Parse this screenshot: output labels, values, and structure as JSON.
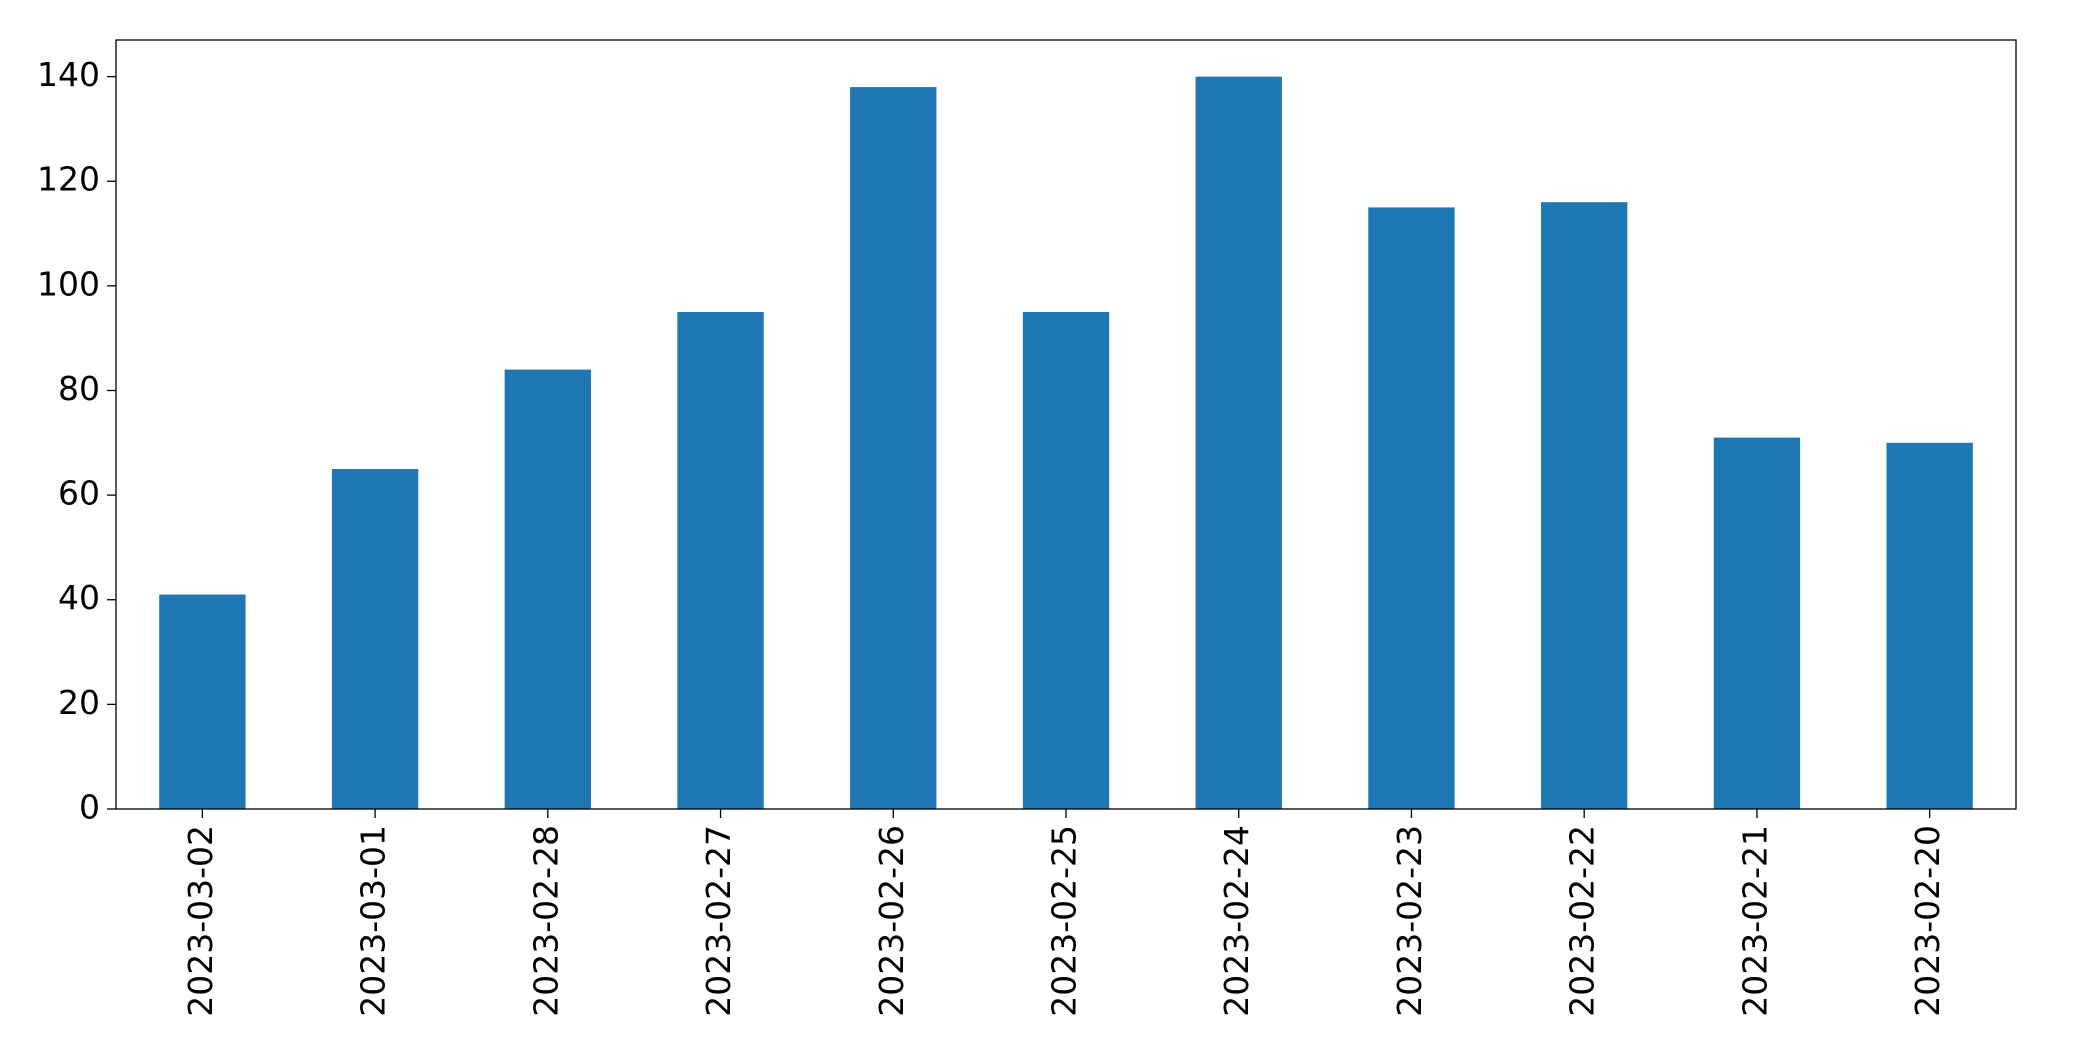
{
  "chart_data": {
    "type": "bar",
    "categories": [
      "2023-03-02",
      "2023-03-01",
      "2023-02-28",
      "2023-02-27",
      "2023-02-26",
      "2023-02-25",
      "2023-02-24",
      "2023-02-23",
      "2023-02-22",
      "2023-02-21",
      "2023-02-20"
    ],
    "values": [
      41,
      65,
      84,
      95,
      138,
      95,
      140,
      115,
      116,
      71,
      70
    ],
    "color": "#1f77b4",
    "ylim": [
      0,
      147
    ],
    "yticks": [
      0,
      20,
      40,
      60,
      80,
      100,
      120,
      140
    ],
    "grid": false
  }
}
